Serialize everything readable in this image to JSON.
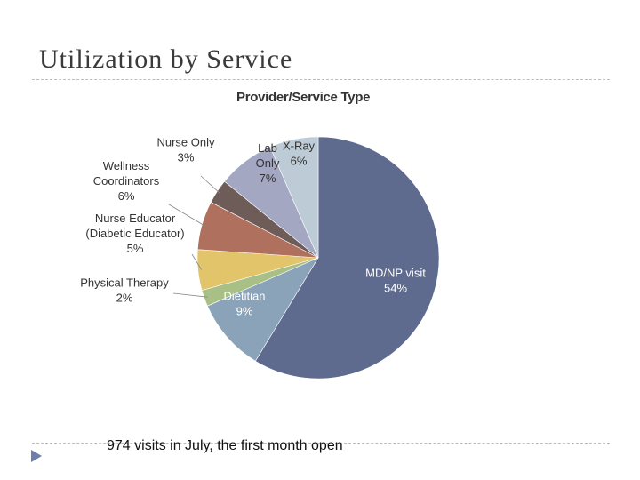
{
  "slide": {
    "title": "Utilization by Service",
    "caption": "974 visits in July, the first month open"
  },
  "colors": {
    "accent_bullet": "#6b7fa8",
    "rule": "#bdbdbd"
  },
  "chart_data": {
    "type": "pie",
    "title": "Provider/Service Type",
    "start_angle_deg": 0,
    "direction": "clockwise",
    "slices": [
      {
        "name": "MD/NP visit",
        "value": 54,
        "label": "54%",
        "color": "#5e6a8e"
      },
      {
        "name": "Dietitian",
        "value": 9,
        "label": "9%",
        "color": "#8ba3b8"
      },
      {
        "name": "Physical Therapy",
        "value": 2,
        "label": "2%",
        "color": "#a8c085"
      },
      {
        "name": "Nurse Educator (Diabetic Educator)",
        "value": 5,
        "label": "5%",
        "color": "#e2c46a"
      },
      {
        "name": "Wellness Coordinators",
        "value": 6,
        "label": "6%",
        "color": "#b0705e"
      },
      {
        "name": "Nurse Only",
        "value": 3,
        "label": "3%",
        "color": "#6e5c58"
      },
      {
        "name": "Lab Only",
        "value": 7,
        "label": "7%",
        "color": "#a4a7c2"
      },
      {
        "name": "X-Ray",
        "value": 6,
        "label": "6%",
        "color": "#bccbd6"
      }
    ],
    "labels": [
      {
        "slice": 0,
        "lines": [
          "MD/NP visit",
          "54%"
        ],
        "inside": true
      },
      {
        "slice": 1,
        "lines": [
          "Dietitian",
          "9%"
        ],
        "inside": true
      },
      {
        "slice": 2,
        "lines": [
          "Physical Therapy",
          "2%"
        ],
        "inside": false
      },
      {
        "slice": 3,
        "lines": [
          "Nurse Educator",
          "(Diabetic Educator)",
          "5%"
        ],
        "inside": false
      },
      {
        "slice": 4,
        "lines": [
          "Wellness",
          "Coordinators",
          "6%"
        ],
        "inside": false
      },
      {
        "slice": 5,
        "lines": [
          "Nurse Only",
          "3%"
        ],
        "inside": false
      },
      {
        "slice": 6,
        "lines": [
          "Lab",
          "Only",
          "7%"
        ],
        "inside": true
      },
      {
        "slice": 7,
        "lines": [
          "X-Ray",
          "6%"
        ],
        "inside": true
      }
    ]
  }
}
